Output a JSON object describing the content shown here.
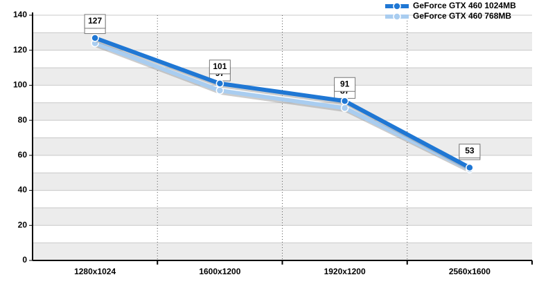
{
  "chart_data": {
    "type": "line",
    "categories": [
      "1280x1024",
      "1600x1200",
      "1920x1200",
      "2560x1600"
    ],
    "series": [
      {
        "name": "GeForce GTX 460 1024MB",
        "color": "#1f77d4",
        "values": [
          127,
          101,
          91,
          53
        ]
      },
      {
        "name": "GeForce GTX 460 768MB",
        "color": "#a9cdf0",
        "values": [
          124,
          97,
          87,
          52
        ]
      }
    ],
    "ylim": [
      0,
      140
    ],
    "yticks": [
      0,
      20,
      40,
      60,
      80,
      100,
      120,
      140
    ],
    "grid": true,
    "legend": "top-right"
  }
}
